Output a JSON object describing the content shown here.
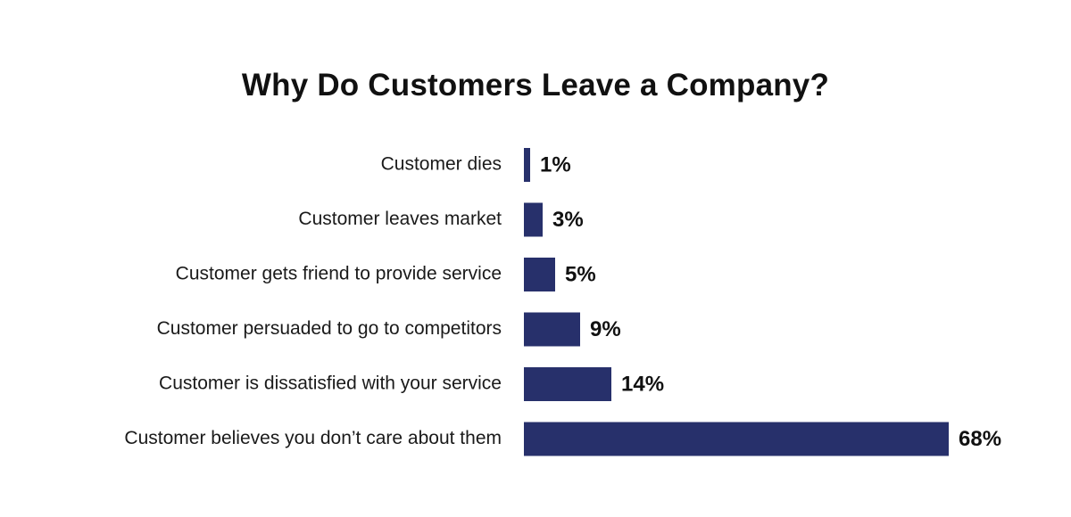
{
  "chart_data": {
    "type": "bar",
    "orientation": "horizontal",
    "title": "Why Do Customers Leave a Company?",
    "categories": [
      "Customer dies",
      "Customer leaves market",
      "Customer gets friend to provide service",
      "Customer persuaded to go to competitors",
      "Customer is dissatisfied with your service",
      "Customer believes you don’t care about them"
    ],
    "values": [
      1,
      3,
      5,
      9,
      14,
      68
    ],
    "value_labels": [
      "1%",
      "3%",
      "5%",
      "9%",
      "14%",
      "68%"
    ],
    "unit": "%",
    "xlim": [
      0,
      68
    ],
    "grid": false,
    "legend": "none",
    "bar_color": "#27306b"
  }
}
